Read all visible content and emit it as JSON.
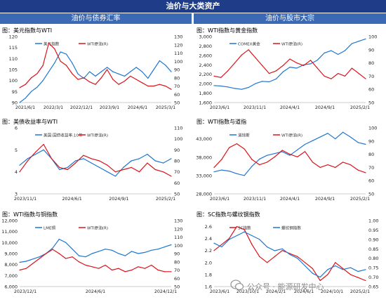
{
  "header": {
    "title": "油价与大类资产",
    "left_heading": "油价与债券汇率",
    "right_heading": "油价与股市大宗"
  },
  "watermark": "公众号 · 能源研发中心",
  "colors": {
    "blue": "#1f77d0",
    "red": "#d9141b",
    "banner": "#1f3c88",
    "subheader": "#3b69b3"
  },
  "chart_data": [
    {
      "type": "line",
      "title": "图：美元指数与WTI",
      "x_ticks": [
        "2021/6/1",
        "2022/3/1",
        "2022/12/1",
        "2023/9/1",
        "2024/6/1",
        "2025/3/1"
      ],
      "y_left": {
        "ticks": [
          "90",
          "95",
          "100",
          "105",
          "110",
          "115",
          "120"
        ],
        "lim": [
          90,
          120
        ]
      },
      "y_right": {
        "ticks": [
          "50",
          "60",
          "70",
          "80",
          "90",
          "100",
          "110",
          "120",
          "130"
        ],
        "lim": [
          50,
          130
        ]
      },
      "series": [
        {
          "name": "美元指数",
          "axis": "left",
          "color": "#1f77d0",
          "values": [
            90,
            92,
            95,
            97,
            100,
            104,
            108,
            113,
            112,
            108,
            103,
            101,
            104,
            102,
            104,
            106,
            104,
            103,
            102,
            104,
            106,
            104,
            101,
            105,
            109,
            107,
            104
          ]
        },
        {
          "name": "WTI原油(R)",
          "axis": "right",
          "color": "#d9141b",
          "values": [
            68,
            72,
            80,
            85,
            95,
            122,
            115,
            100,
            95,
            85,
            78,
            80,
            75,
            72,
            80,
            90,
            78,
            72,
            76,
            82,
            78,
            74,
            70,
            70,
            72,
            70,
            66
          ]
        }
      ]
    },
    {
      "type": "line",
      "title": "图：WTI指数与黄金指数",
      "x_ticks": [
        "2023/6/1",
        "2023/11/1",
        "2024/4/1",
        "2024/9/1",
        "2025/2/1"
      ],
      "y_left": {
        "ticks": [
          "1,600",
          "1,800",
          "2,000",
          "2,200",
          "2,400",
          "2,600",
          "2,800",
          "3,000"
        ],
        "lim": [
          1600,
          3000
        ]
      },
      "y_right": {
        "ticks": [
          "50",
          "60",
          "70",
          "80",
          "90",
          "100"
        ],
        "lim": [
          50,
          100
        ]
      },
      "series": [
        {
          "name": "COMEX黄金",
          "axis": "left",
          "color": "#1f77d0",
          "values": [
            1960,
            1950,
            1930,
            1900,
            1880,
            1920,
            2000,
            2050,
            2040,
            2100,
            2250,
            2350,
            2330,
            2400,
            2420,
            2500,
            2650,
            2700,
            2620,
            2700,
            2850,
            2900,
            2950
          ]
        },
        {
          "name": "WTI原油(R)",
          "axis": "right",
          "color": "#d9141b",
          "values": [
            70,
            69,
            74,
            80,
            86,
            90,
            84,
            78,
            72,
            74,
            78,
            83,
            80,
            78,
            82,
            76,
            70,
            68,
            72,
            70,
            76,
            72,
            68
          ]
        }
      ]
    },
    {
      "type": "line",
      "title": "图：美债收益率与WTI",
      "x_ticks": [
        "2023/11/1",
        "2024/6/1",
        "2024/9/1",
        "2025/2/1"
      ],
      "y_left": {
        "ticks": [
          "3",
          "4",
          "5",
          "6"
        ],
        "lim": [
          3,
          6
        ]
      },
      "y_right": {
        "ticks": [
          "50",
          "60",
          "70",
          "80",
          "90",
          "100",
          "110"
        ],
        "lim": [
          50,
          110
        ]
      },
      "series": [
        {
          "name": "美国:国债收益率:10年",
          "axis": "left",
          "color": "#1f77d0",
          "values": [
            4.3,
            4.6,
            4.8,
            5.0,
            4.6,
            4.1,
            4.2,
            4.5,
            4.6,
            4.4,
            4.2,
            4.0,
            3.8,
            4.2,
            4.5,
            4.6,
            4.8,
            4.5,
            4.4,
            4.6
          ]
        },
        {
          "name": "WTI原油(R)",
          "axis": "right",
          "color": "#d9141b",
          "values": [
            70,
            80,
            88,
            95,
            82,
            74,
            72,
            78,
            85,
            82,
            80,
            76,
            70,
            72,
            74,
            70,
            78,
            72,
            70,
            66
          ]
        }
      ]
    },
    {
      "type": "line",
      "title": "图：WTI指数与道指",
      "x_ticks": [
        "2023/6/1",
        "2023/11/1",
        "2024/4/1",
        "2024/9/1",
        "2025/2/1"
      ],
      "y_left": {
        "ticks": [
          "28,000",
          "33,000",
          "38,000",
          "43,000"
        ],
        "lim": [
          28000,
          46000
        ]
      },
      "y_right": {
        "ticks": [
          "50",
          "60",
          "70",
          "80",
          "90",
          "100"
        ],
        "lim": [
          50,
          100
        ]
      },
      "series": [
        {
          "name": "道琼斯",
          "axis": "left",
          "color": "#1f77d0",
          "values": [
            34000,
            34500,
            34200,
            33500,
            33000,
            35500,
            37500,
            38500,
            39000,
            39500,
            38500,
            40000,
            41500,
            42500,
            43500,
            44500,
            43000,
            44800,
            43500,
            42000,
            41500
          ]
        },
        {
          "name": "WTI原油(R)",
          "axis": "right",
          "color": "#d9141b",
          "values": [
            70,
            76,
            85,
            88,
            84,
            76,
            72,
            74,
            78,
            83,
            80,
            78,
            82,
            74,
            70,
            72,
            70,
            74,
            72,
            68,
            66
          ]
        }
      ]
    },
    {
      "type": "line",
      "title": "图：WTI指数与铜指数",
      "x_ticks": [
        "2023/12/1",
        "2024/6/1",
        "2024/12/1"
      ],
      "y_left": {
        "ticks": [
          "6,000",
          "7,000",
          "8,000",
          "9,000",
          "10,000",
          "11,000",
          "12,000"
        ],
        "lim": [
          6000,
          12000
        ]
      },
      "y_right": {
        "ticks": [
          "50",
          "60",
          "70",
          "80",
          "90",
          "100",
          "110",
          "120",
          "130"
        ],
        "lim": [
          50,
          130
        ]
      },
      "series": [
        {
          "name": "LME铜",
          "axis": "left",
          "color": "#1f77d0",
          "values": [
            8200,
            8300,
            8500,
            8700,
            9000,
            9500,
            10300,
            10000,
            9400,
            8800,
            8700,
            9000,
            9200,
            9400,
            9300,
            9000,
            8800,
            9200,
            9000,
            9100,
            9300,
            9400,
            9600,
            9800
          ]
        },
        {
          "name": "WTI原油(R)",
          "axis": "right",
          "color": "#d9141b",
          "values": [
            70,
            72,
            78,
            84,
            90,
            95,
            90,
            84,
            86,
            80,
            76,
            74,
            72,
            76,
            70,
            72,
            68,
            70,
            74,
            72,
            76,
            70,
            68,
            68
          ]
        }
      ]
    },
    {
      "type": "line",
      "title": "图：SC指数与螺纹钢指数",
      "x_ticks": [
        "2023/6/1",
        "2023/10/1",
        "2024/2/1",
        "2024/6/1",
        "2024/10/1",
        "2025/2/1"
      ],
      "y_left": {
        "ticks": [
          "1.6",
          "1.8",
          "2.0",
          "2.2",
          "2.4",
          "2.6"
        ],
        "lim": [
          1.6,
          2.7
        ]
      },
      "y_right": {
        "ticks": [
          "0.65",
          "0.70",
          "0.75",
          "0.80",
          "0.85",
          "0.90",
          "0.95",
          "1.00"
        ],
        "lim": [
          0.65,
          1.0
        ]
      },
      "series": [
        {
          "name": "SC指数",
          "axis": "left",
          "color": "#d9141b",
          "values": [
            2.2,
            2.3,
            2.4,
            2.6,
            2.55,
            2.3,
            2.1,
            2.0,
            2.1,
            2.2,
            2.15,
            2.1,
            2.0,
            1.9,
            1.7,
            1.8,
            2.0,
            1.9,
            1.8,
            1.75,
            1.7
          ]
        },
        {
          "name": "螺纹钢指数",
          "axis": "right",
          "color": "#1f77d0",
          "values": [
            0.88,
            0.86,
            0.9,
            0.92,
            0.94,
            0.92,
            0.9,
            0.86,
            0.84,
            0.85,
            0.82,
            0.8,
            0.76,
            0.72,
            0.7,
            0.74,
            0.76,
            0.74,
            0.75,
            0.73,
            0.74
          ]
        }
      ]
    }
  ]
}
